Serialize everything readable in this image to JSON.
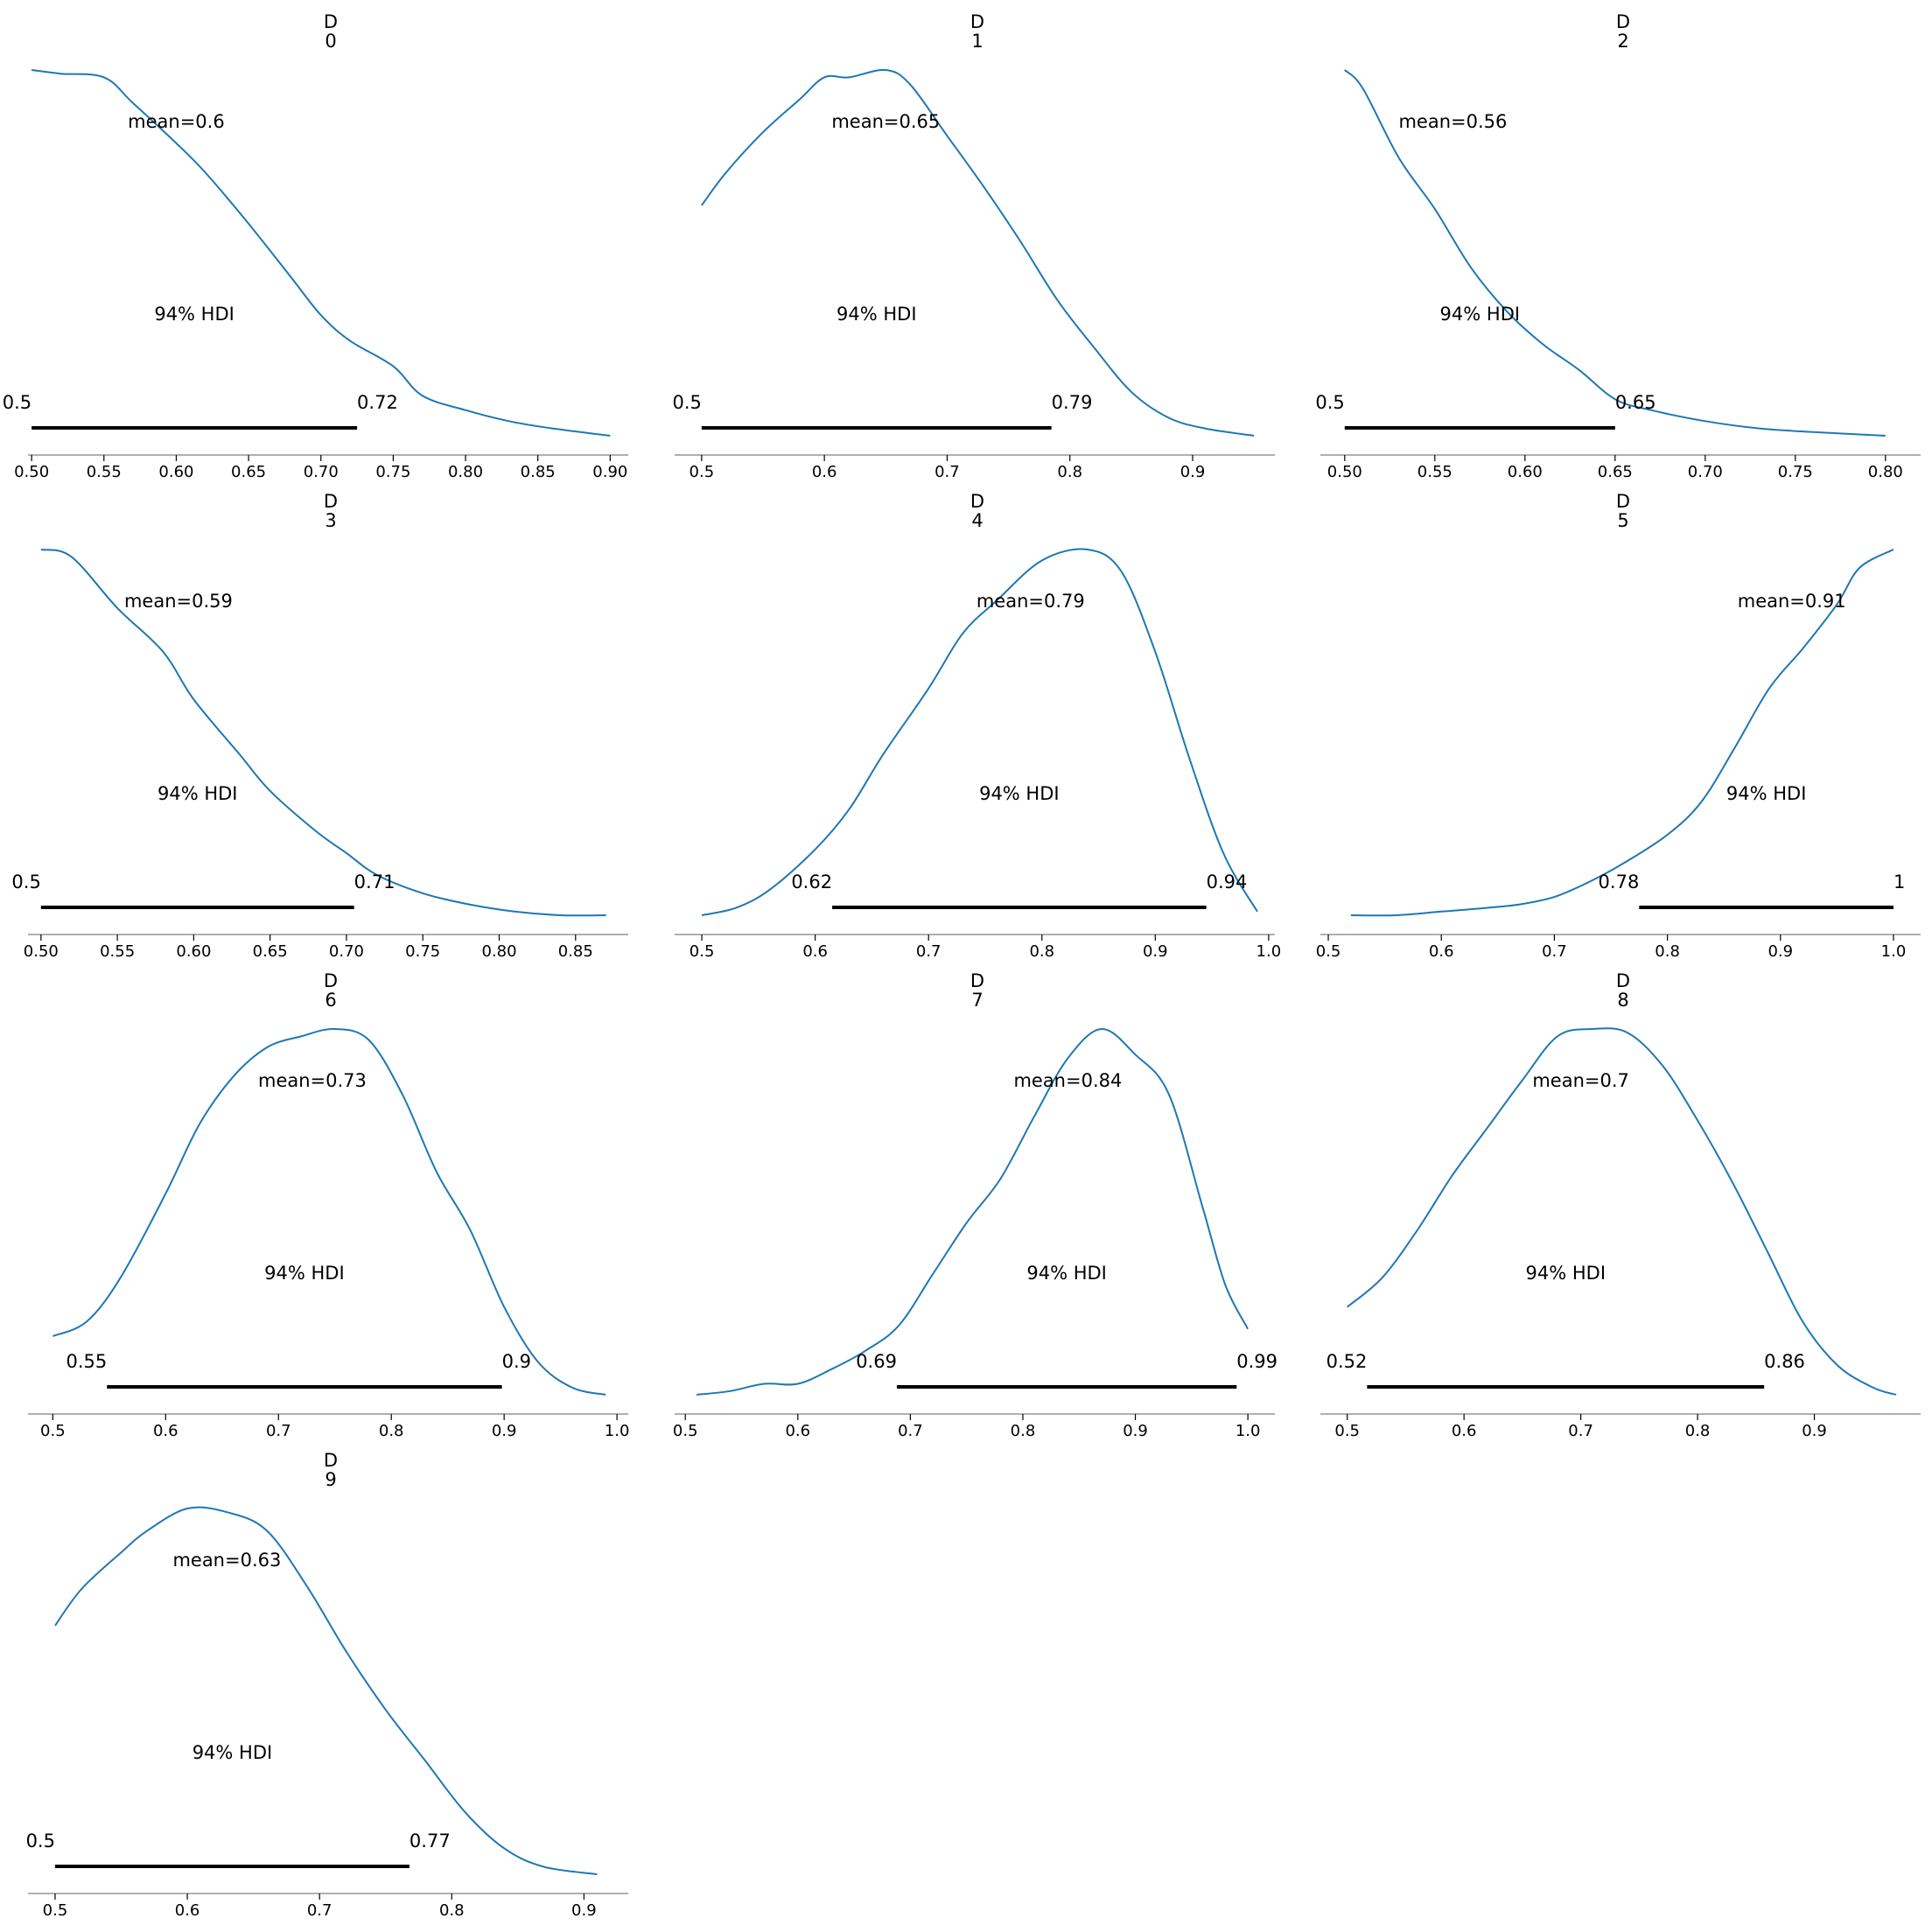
{
  "figure": {
    "background": "#ffffff",
    "curve_color": "#1f77b4",
    "hdi_color": "#000000",
    "axis_color": "#808080"
  },
  "chart_data": [
    {
      "type": "line",
      "title": [
        "D",
        "0"
      ],
      "mean_label": "mean=0.6",
      "hdi_label": "94% HDI",
      "hdi": [
        0.5,
        0.725
      ],
      "hdi_low_label": "0.5",
      "hdi_high_label": "0.72",
      "xlim": [
        0.4975,
        0.9125
      ],
      "xticks": [
        "0.50",
        "0.55",
        "0.60",
        "0.65",
        "0.70",
        "0.75",
        "0.80",
        "0.85",
        "0.90"
      ],
      "xtick_values": [
        0.5,
        0.55,
        0.6,
        0.65,
        0.7,
        0.75,
        0.8,
        0.85,
        0.9
      ],
      "density": {
        "x": [
          0.5,
          0.52,
          0.55,
          0.57,
          0.6,
          0.62,
          0.65,
          0.68,
          0.7,
          0.72,
          0.75,
          0.77,
          0.8,
          0.83,
          0.86,
          0.9
        ],
        "y": [
          1.0,
          0.99,
          0.98,
          0.91,
          0.8,
          0.72,
          0.58,
          0.43,
          0.33,
          0.26,
          0.19,
          0.11,
          0.07,
          0.04,
          0.02,
          0.0
        ]
      }
    },
    {
      "type": "line",
      "title": [
        "D",
        "1"
      ],
      "mean_label": "mean=0.65",
      "hdi_label": "94% HDI",
      "hdi": [
        0.5,
        0.785
      ],
      "hdi_low_label": "0.5",
      "hdi_high_label": "0.79",
      "xlim": [
        0.478,
        0.967
      ],
      "xticks": [
        "0.5",
        "0.6",
        "0.7",
        "0.8",
        "0.9"
      ],
      "xtick_values": [
        0.5,
        0.6,
        0.7,
        0.8,
        0.9
      ],
      "density": {
        "x": [
          0.5,
          0.52,
          0.55,
          0.58,
          0.6,
          0.62,
          0.65,
          0.67,
          0.7,
          0.73,
          0.76,
          0.79,
          0.82,
          0.85,
          0.88,
          0.91,
          0.95
        ],
        "y": [
          0.63,
          0.72,
          0.83,
          0.92,
          0.98,
          0.98,
          1.0,
          0.96,
          0.82,
          0.68,
          0.53,
          0.37,
          0.24,
          0.12,
          0.05,
          0.02,
          0.0
        ]
      }
    },
    {
      "type": "line",
      "title": [
        "D",
        "2"
      ],
      "mean_label": "mean=0.56",
      "hdi_label": "94% HDI",
      "hdi": [
        0.5,
        0.65
      ],
      "hdi_low_label": "0.5",
      "hdi_high_label": "0.65",
      "xlim": [
        0.4865,
        0.8195
      ],
      "xticks": [
        "0.50",
        "0.55",
        "0.60",
        "0.65",
        "0.70",
        "0.75",
        "0.80"
      ],
      "xtick_values": [
        0.5,
        0.55,
        0.6,
        0.65,
        0.7,
        0.75,
        0.8
      ],
      "density": {
        "x": [
          0.5,
          0.51,
          0.53,
          0.55,
          0.57,
          0.59,
          0.61,
          0.63,
          0.65,
          0.67,
          0.7,
          0.73,
          0.76,
          0.8
        ],
        "y": [
          1.0,
          0.95,
          0.76,
          0.62,
          0.46,
          0.34,
          0.25,
          0.18,
          0.1,
          0.07,
          0.04,
          0.02,
          0.01,
          0.0
        ]
      }
    },
    {
      "type": "line",
      "title": [
        "D",
        "3"
      ],
      "mean_label": "mean=0.59",
      "hdi_label": "94% HDI",
      "hdi": [
        0.5,
        0.705
      ],
      "hdi_low_label": "0.5",
      "hdi_high_label": "0.71",
      "xlim": [
        0.4915,
        0.8845
      ],
      "xticks": [
        "0.50",
        "0.55",
        "0.60",
        "0.65",
        "0.70",
        "0.75",
        "0.80",
        "0.85"
      ],
      "xtick_values": [
        0.5,
        0.55,
        0.6,
        0.65,
        0.7,
        0.75,
        0.8,
        0.85
      ],
      "density": {
        "x": [
          0.5,
          0.52,
          0.55,
          0.58,
          0.6,
          0.63,
          0.65,
          0.68,
          0.7,
          0.72,
          0.75,
          0.78,
          0.81,
          0.84,
          0.87
        ],
        "y": [
          1.0,
          0.98,
          0.84,
          0.72,
          0.59,
          0.44,
          0.34,
          0.23,
          0.17,
          0.11,
          0.06,
          0.03,
          0.01,
          0.0,
          0.0
        ]
      }
    },
    {
      "type": "line",
      "title": [
        "D",
        "4"
      ],
      "mean_label": "mean=0.79",
      "hdi_label": "94% HDI",
      "hdi": [
        0.615,
        0.945
      ],
      "hdi_low_label": "0.62",
      "hdi_high_label": "0.94",
      "xlim": [
        0.476,
        1.0055
      ],
      "xticks": [
        "0.5",
        "0.6",
        "0.7",
        "0.8",
        "0.9",
        "1.0"
      ],
      "xtick_values": [
        0.5,
        0.6,
        0.7,
        0.8,
        0.9,
        1.0
      ],
      "density": {
        "x": [
          0.5,
          0.53,
          0.56,
          0.6,
          0.63,
          0.66,
          0.7,
          0.73,
          0.76,
          0.8,
          0.84,
          0.87,
          0.9,
          0.93,
          0.96,
          0.99
        ],
        "y": [
          0.0,
          0.02,
          0.07,
          0.18,
          0.29,
          0.44,
          0.62,
          0.77,
          0.86,
          0.97,
          1.0,
          0.94,
          0.72,
          0.43,
          0.17,
          0.01
        ]
      }
    },
    {
      "type": "line",
      "title": [
        "D",
        "5"
      ],
      "mean_label": "mean=0.91",
      "hdi_label": "94% HDI",
      "hdi": [
        0.775,
        1.0
      ],
      "hdi_low_label": "0.78",
      "hdi_high_label": "1",
      "xlim": [
        0.493,
        1.024
      ],
      "xticks": [
        "0.5",
        "0.6",
        "0.7",
        "0.8",
        "0.9",
        "1.0"
      ],
      "xtick_values": [
        0.5,
        0.6,
        0.7,
        0.8,
        0.9,
        1.0
      ],
      "density": {
        "x": [
          0.52,
          0.56,
          0.6,
          0.64,
          0.67,
          0.7,
          0.73,
          0.76,
          0.8,
          0.83,
          0.86,
          0.89,
          0.92,
          0.95,
          0.97,
          1.0
        ],
        "y": [
          0.0,
          0.0,
          0.01,
          0.02,
          0.03,
          0.05,
          0.09,
          0.14,
          0.22,
          0.31,
          0.46,
          0.62,
          0.73,
          0.85,
          0.95,
          1.0
        ]
      }
    },
    {
      "type": "line",
      "title": [
        "D",
        "6"
      ],
      "mean_label": "mean=0.73",
      "hdi_label": "94% HDI",
      "hdi": [
        0.548,
        0.898
      ],
      "hdi_low_label": "0.55",
      "hdi_high_label": "0.9",
      "xlim": [
        0.478,
        1.01
      ],
      "xticks": [
        "0.5",
        "0.6",
        "0.7",
        "0.8",
        "0.9",
        "1.0"
      ],
      "xtick_values": [
        0.5,
        0.6,
        0.7,
        0.8,
        0.9,
        1.0
      ],
      "density": {
        "x": [
          0.5,
          0.53,
          0.56,
          0.6,
          0.63,
          0.66,
          0.69,
          0.72,
          0.75,
          0.78,
          0.81,
          0.84,
          0.87,
          0.9,
          0.93,
          0.96,
          0.99
        ],
        "y": [
          0.16,
          0.2,
          0.32,
          0.55,
          0.74,
          0.87,
          0.95,
          0.98,
          1.0,
          0.97,
          0.82,
          0.61,
          0.45,
          0.24,
          0.09,
          0.02,
          0.0
        ]
      }
    },
    {
      "type": "line",
      "title": [
        "D",
        "7"
      ],
      "mean_label": "mean=0.84",
      "hdi_label": "94% HDI",
      "hdi": [
        0.688,
        0.99
      ],
      "hdi_low_label": "0.69",
      "hdi_high_label": "0.99",
      "xlim": [
        0.4905,
        1.024
      ],
      "xticks": [
        "0.5",
        "0.6",
        "0.7",
        "0.8",
        "0.9",
        "1.0"
      ],
      "xtick_values": [
        0.5,
        0.6,
        0.7,
        0.8,
        0.9,
        1.0
      ],
      "density": {
        "x": [
          0.51,
          0.54,
          0.57,
          0.6,
          0.63,
          0.66,
          0.69,
          0.72,
          0.75,
          0.78,
          0.81,
          0.84,
          0.87,
          0.9,
          0.93,
          0.96,
          0.98,
          1.0
        ],
        "y": [
          0.0,
          0.01,
          0.03,
          0.03,
          0.07,
          0.12,
          0.19,
          0.33,
          0.47,
          0.59,
          0.76,
          0.92,
          1.0,
          0.93,
          0.82,
          0.51,
          0.3,
          0.18
        ]
      }
    },
    {
      "type": "line",
      "title": [
        "D",
        "8"
      ],
      "mean_label": "mean=0.7",
      "hdi_label": "94% HDI",
      "hdi": [
        0.517,
        0.857
      ],
      "hdi_low_label": "0.52",
      "hdi_high_label": "0.86",
      "xlim": [
        0.477,
        0.991
      ],
      "xticks": [
        "0.5",
        "0.6",
        "0.7",
        "0.8",
        "0.9"
      ],
      "xtick_values": [
        0.5,
        0.6,
        0.7,
        0.8,
        0.9
      ],
      "density": {
        "x": [
          0.5,
          0.53,
          0.56,
          0.59,
          0.62,
          0.65,
          0.68,
          0.71,
          0.74,
          0.77,
          0.8,
          0.83,
          0.86,
          0.89,
          0.92,
          0.95,
          0.97
        ],
        "y": [
          0.24,
          0.32,
          0.45,
          0.6,
          0.73,
          0.86,
          0.98,
          1.0,
          0.99,
          0.9,
          0.75,
          0.58,
          0.39,
          0.2,
          0.08,
          0.02,
          0.0
        ]
      }
    },
    {
      "type": "line",
      "title": [
        "D",
        "9"
      ],
      "mean_label": "mean=0.63",
      "hdi_label": "94% HDI",
      "hdi": [
        0.5,
        0.768
      ],
      "hdi_low_label": "0.5",
      "hdi_high_label": "0.77",
      "xlim": [
        0.4795,
        0.9335
      ],
      "xticks": [
        "0.5",
        "0.6",
        "0.7",
        "0.8",
        "0.9"
      ],
      "xtick_values": [
        0.5,
        0.6,
        0.7,
        0.8,
        0.9
      ],
      "density": {
        "x": [
          0.5,
          0.52,
          0.55,
          0.57,
          0.6,
          0.63,
          0.66,
          0.69,
          0.72,
          0.75,
          0.78,
          0.81,
          0.84,
          0.87,
          0.91
        ],
        "y": [
          0.68,
          0.78,
          0.88,
          0.94,
          1.0,
          0.99,
          0.94,
          0.79,
          0.61,
          0.45,
          0.31,
          0.17,
          0.07,
          0.02,
          0.0
        ]
      }
    }
  ]
}
